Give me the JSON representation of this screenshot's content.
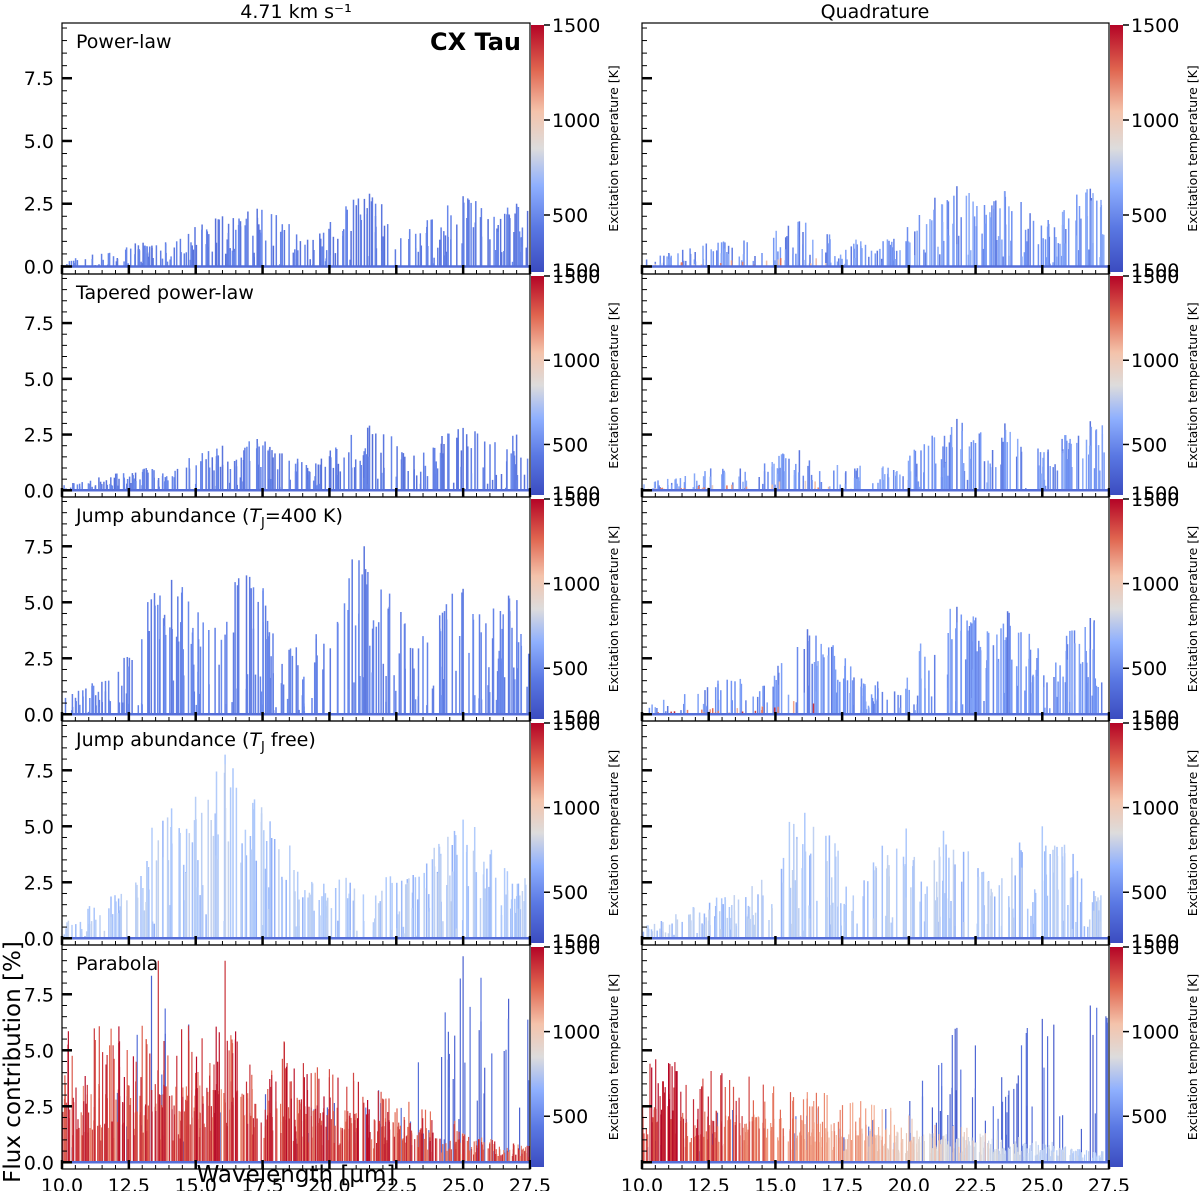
{
  "figure": {
    "left_column_title": "4.71 km s⁻¹",
    "right_column_title": "Quadrature",
    "object_label": "CX Tau",
    "y_axis_label": "Flux contribution [%]",
    "x_axis_label": "Wavelength [µm]",
    "colorbar_label": "Excitation temperature [K]"
  },
  "chart_data": {
    "type": "line",
    "description_units": "x: wavelength (micron), y: flux contribution (%), color: excitation temperature (K)",
    "xlim": [
      10.0,
      27.5
    ],
    "ylim": [
      -0.3,
      9.7
    ],
    "x_ticks": [
      "10.0",
      "12.5",
      "15.0",
      "17.5",
      "20.0",
      "22.5",
      "25.0",
      "27.5"
    ],
    "x_tick_values": [
      10.0,
      12.5,
      15.0,
      17.5,
      20.0,
      22.5,
      25.0,
      27.5
    ],
    "y_ticks": [
      "0.0",
      "2.5",
      "5.0",
      "7.5"
    ],
    "y_tick_values": [
      0.0,
      2.5,
      5.0,
      7.5
    ],
    "colorbar": {
      "range": [
        200,
        1500
      ],
      "ticks": [
        "500",
        "1000",
        "1500"
      ],
      "tick_values": [
        500,
        1000,
        1500
      ],
      "top_label": "1500",
      "colors": [
        "#3b4cc0",
        "#7396f5",
        "#b0cbfc",
        "#dddcdc",
        "#f5b094",
        "#e26952",
        "#b40426"
      ]
    },
    "rows": [
      {
        "model": "Power-law",
        "panels": [
          {
            "column": "4.71 km s⁻¹",
            "max_flux_pct": 2.9,
            "peaks": [
              [
                16.0,
                2.0
              ],
              [
                17.3,
                2.3
              ],
              [
                21.5,
                2.9
              ],
              [
                25.0,
                2.8
              ],
              [
                27.0,
                2.5
              ]
            ],
            "temperature_profile": "uniform ~300 K"
          },
          {
            "column": "Quadrature",
            "max_flux_pct": 3.2,
            "peaks": [
              [
                15.9,
                1.8
              ],
              [
                21.8,
                3.2
              ],
              [
                23.6,
                3.0
              ],
              [
                26.8,
                3.1
              ]
            ],
            "temperature_profile": "warm (~1000 K) lines below 17 micron, cool above"
          }
        ]
      },
      {
        "model": "Tapered power-law",
        "panels": [
          {
            "column": "4.71 km s⁻¹",
            "max_flux_pct": 2.9,
            "peaks": [
              [
                16.0,
                2.0
              ],
              [
                17.3,
                2.3
              ],
              [
                21.5,
                2.9
              ],
              [
                25.0,
                2.8
              ],
              [
                27.0,
                2.5
              ]
            ],
            "temperature_profile": "uniform ~300 K"
          },
          {
            "column": "Quadrature",
            "max_flux_pct": 3.2,
            "peaks": [
              [
                15.9,
                1.8
              ],
              [
                21.8,
                3.2
              ],
              [
                23.6,
                3.0
              ],
              [
                26.8,
                3.1
              ]
            ],
            "temperature_profile": "mostly cool, few warm lines"
          }
        ]
      },
      {
        "model": "Jump abundance (Tⱼ=400 K)",
        "label_prefix": "Jump abundance (",
        "label_italic": "T",
        "label_sub": "J",
        "label_suffix": "=400 K)",
        "panels": [
          {
            "column": "4.71 km s⁻¹",
            "max_flux_pct": 7.5,
            "peaks": [
              [
                14.1,
                6.0
              ],
              [
                16.9,
                6.2
              ],
              [
                21.3,
                7.5
              ],
              [
                25.0,
                5.6
              ],
              [
                26.7,
                5.3
              ]
            ],
            "temperature_profile": "uniform ~350 K"
          },
          {
            "column": "Quadrature",
            "max_flux_pct": 4.8,
            "peaks": [
              [
                16.2,
                3.8
              ],
              [
                21.8,
                4.8
              ],
              [
                23.7,
                4.6
              ],
              [
                26.8,
                4.3
              ]
            ],
            "temperature_profile": "warm low-level lines below 16 micron"
          }
        ]
      },
      {
        "model": "Jump abundance (Tⱼ free)",
        "label_prefix": "Jump abundance (",
        "label_italic": "T",
        "label_sub": "J",
        "label_suffix": " free)",
        "panels": [
          {
            "column": "4.71 km s⁻¹",
            "max_flux_pct": 8.2,
            "peaks": [
              [
                14.1,
                5.8
              ],
              [
                16.1,
                8.2
              ],
              [
                17.2,
                6.2
              ],
              [
                25.0,
                5.3
              ]
            ],
            "temperature_profile": "uniform ~600 K"
          },
          {
            "column": "Quadrature",
            "max_flux_pct": 5.6,
            "peaks": [
              [
                16.1,
                5.6
              ],
              [
                19.9,
                4.9
              ],
              [
                21.3,
                4.8
              ],
              [
                25.0,
                5.0
              ]
            ],
            "temperature_profile": "uniform ~600 K"
          }
        ]
      },
      {
        "model": "Parabola",
        "panels": [
          {
            "column": "4.71 km s⁻¹",
            "max_flux_pct": 9.2,
            "peaks": [
              [
                13.6,
                9.0
              ],
              [
                16.1,
                9.0
              ],
              [
                25.0,
                9.2
              ],
              [
                26.7,
                7.3
              ]
            ],
            "temperature_profile": "hot (~1400 K) envelope, cool strong lines beyond 24 micron"
          },
          {
            "column": "Quadrature",
            "max_flux_pct": 7.0,
            "peaks": [
              [
                10.3,
                4.4
              ],
              [
                21.8,
                6.0
              ],
              [
                25.0,
                6.4
              ],
              [
                26.8,
                7.0
              ]
            ],
            "temperature_profile": "hot envelope decaying with wavelength, cool strong lines beyond 21 micron"
          }
        ]
      }
    ]
  }
}
